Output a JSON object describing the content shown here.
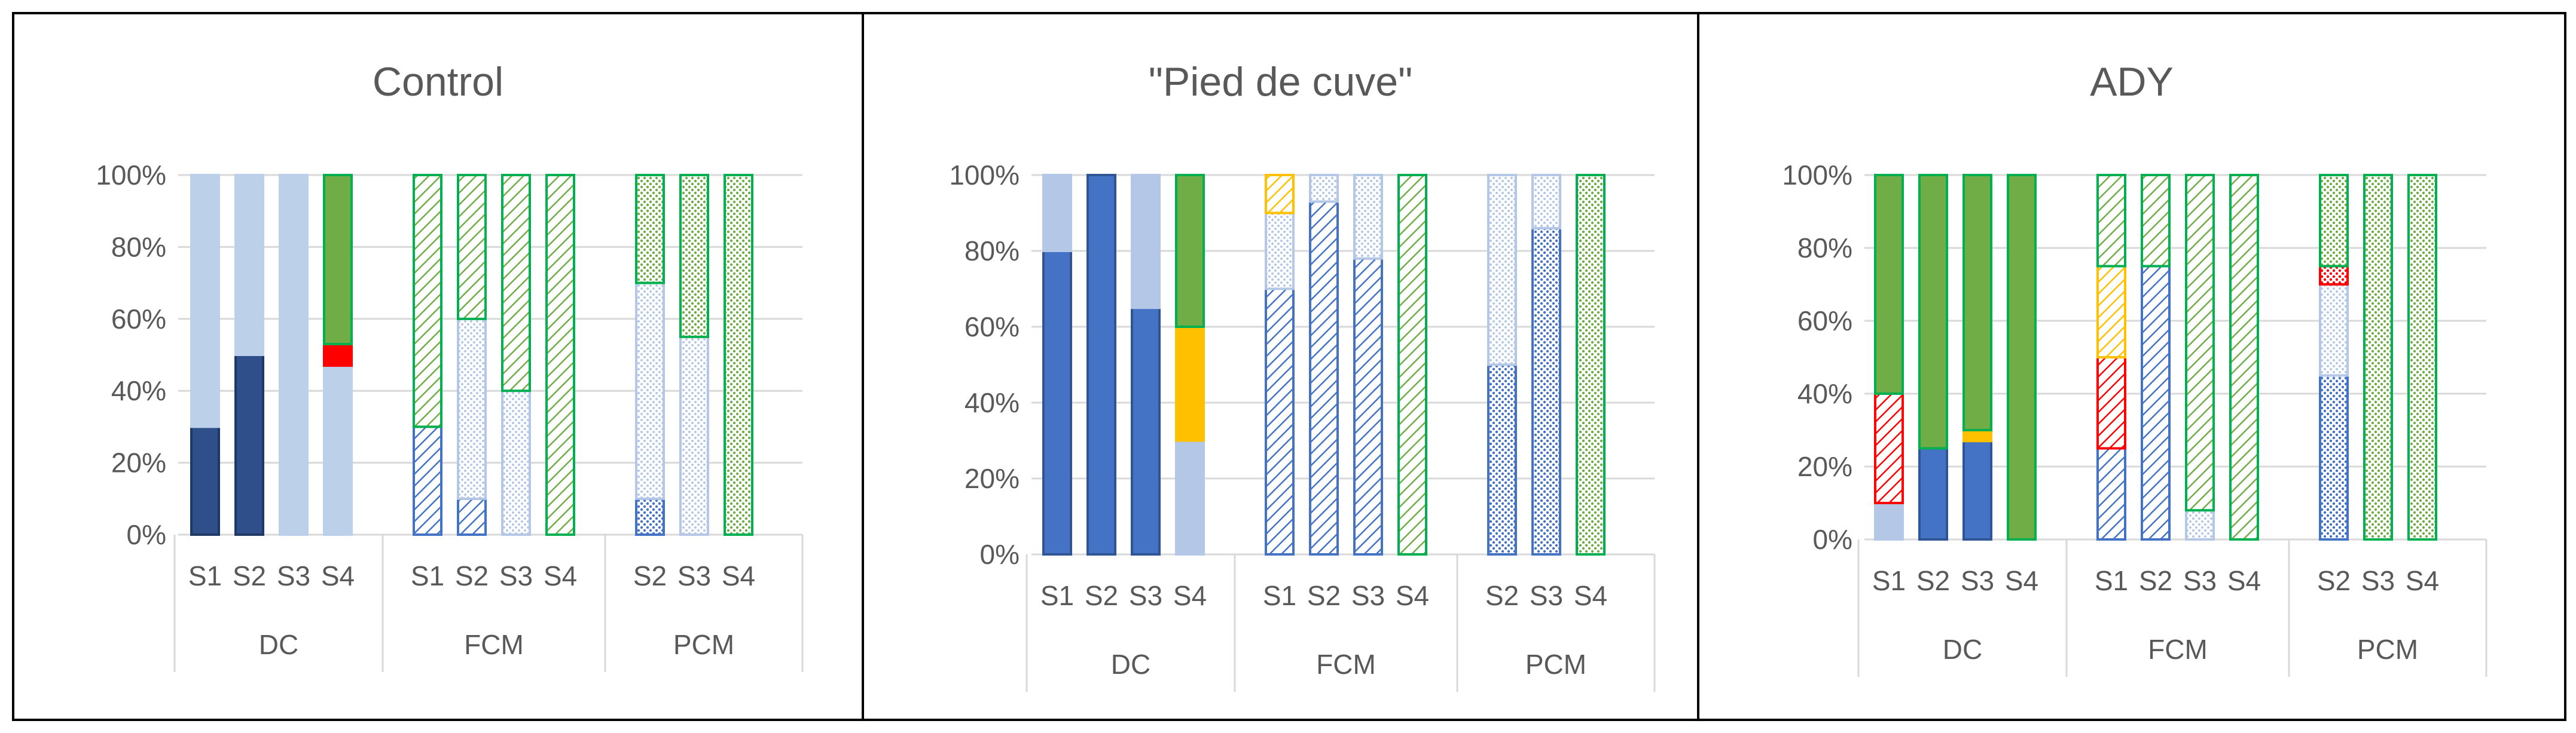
{
  "colors": {
    "dark_navy": "#2f4f8a",
    "blue": "#4472c4",
    "light_blue": "#bdd0ea",
    "pale_blue": "#b4c7e7",
    "green": "#70ad47",
    "red": "#ff0000",
    "yellow": "#ffc000",
    "axis": "#d9d9d9",
    "text": "#595959",
    "border": "#000000"
  },
  "chart_data": [
    {
      "type": "bar",
      "stacked": true,
      "title": "Control",
      "yticks": [
        "0%",
        "20%",
        "40%",
        "60%",
        "80%",
        "100%"
      ],
      "ylim": [
        0,
        100
      ],
      "groups": [
        {
          "label": "DC",
          "categories": [
            "S1",
            "S2",
            "S3",
            "S4"
          ]
        },
        {
          "label": "FCM",
          "categories": [
            "S1",
            "S2",
            "S3",
            "S4"
          ]
        },
        {
          "label": "PCM",
          "categories": [
            "S2",
            "S3",
            "S4"
          ]
        }
      ],
      "bars": [
        {
          "group": "DC",
          "category": "S1",
          "segments": [
            {
              "value": 30,
              "style": "dark_navy"
            },
            {
              "value": 70,
              "style": "light_blue"
            }
          ]
        },
        {
          "group": "DC",
          "category": "S2",
          "segments": [
            {
              "value": 50,
              "style": "dark_navy"
            },
            {
              "value": 50,
              "style": "light_blue"
            }
          ]
        },
        {
          "group": "DC",
          "category": "S3",
          "segments": [
            {
              "value": 100,
              "style": "light_blue"
            }
          ]
        },
        {
          "group": "DC",
          "category": "S4",
          "segments": [
            {
              "value": 47,
              "style": "light_blue"
            },
            {
              "value": 6,
              "style": "red"
            },
            {
              "value": 47,
              "style": "green"
            }
          ]
        },
        {
          "group": "FCM",
          "category": "S1",
          "segments": [
            {
              "value": 30,
              "style": "blue_hatch"
            },
            {
              "value": 70,
              "style": "green_hatch"
            }
          ]
        },
        {
          "group": "FCM",
          "category": "S2",
          "segments": [
            {
              "value": 10,
              "style": "blue_hatch"
            },
            {
              "value": 50,
              "style": "pale_blue_dots"
            },
            {
              "value": 40,
              "style": "green_hatch"
            }
          ]
        },
        {
          "group": "FCM",
          "category": "S3",
          "segments": [
            {
              "value": 40,
              "style": "pale_blue_dots"
            },
            {
              "value": 60,
              "style": "green_hatch"
            }
          ]
        },
        {
          "group": "FCM",
          "category": "S4",
          "segments": [
            {
              "value": 100,
              "style": "green_hatch"
            }
          ]
        },
        {
          "group": "PCM",
          "category": "S2",
          "segments": [
            {
              "value": 10,
              "style": "blue_dots"
            },
            {
              "value": 60,
              "style": "pale_blue_dots"
            },
            {
              "value": 30,
              "style": "green_dots"
            }
          ]
        },
        {
          "group": "PCM",
          "category": "S3",
          "segments": [
            {
              "value": 55,
              "style": "pale_blue_dots"
            },
            {
              "value": 45,
              "style": "green_dots"
            }
          ]
        },
        {
          "group": "PCM",
          "category": "S4",
          "segments": [
            {
              "value": 100,
              "style": "green_dots"
            }
          ]
        }
      ]
    },
    {
      "type": "bar",
      "stacked": true,
      "title": "\"Pied de cuve\"",
      "yticks": [
        "0%",
        "20%",
        "40%",
        "60%",
        "80%",
        "100%"
      ],
      "ylim": [
        0,
        100
      ],
      "groups": [
        {
          "label": "DC",
          "categories": [
            "S1",
            "S2",
            "S3",
            "S4"
          ]
        },
        {
          "label": "FCM",
          "categories": [
            "S1",
            "S2",
            "S3",
            "S4"
          ]
        },
        {
          "label": "PCM",
          "categories": [
            "S2",
            "S3",
            "S4"
          ]
        }
      ],
      "bars": [
        {
          "group": "DC",
          "category": "S1",
          "segments": [
            {
              "value": 80,
              "style": "blue"
            },
            {
              "value": 20,
              "style": "pale_blue"
            }
          ]
        },
        {
          "group": "DC",
          "category": "S2",
          "segments": [
            {
              "value": 100,
              "style": "blue"
            }
          ]
        },
        {
          "group": "DC",
          "category": "S3",
          "segments": [
            {
              "value": 65,
              "style": "blue"
            },
            {
              "value": 35,
              "style": "pale_blue"
            }
          ]
        },
        {
          "group": "DC",
          "category": "S4",
          "segments": [
            {
              "value": 30,
              "style": "pale_blue"
            },
            {
              "value": 30,
              "style": "yellow"
            },
            {
              "value": 40,
              "style": "green"
            }
          ]
        },
        {
          "group": "FCM",
          "category": "S1",
          "segments": [
            {
              "value": 70,
              "style": "blue_hatch"
            },
            {
              "value": 20,
              "style": "pale_blue_dots"
            },
            {
              "value": 10,
              "style": "yellow_hatch"
            }
          ]
        },
        {
          "group": "FCM",
          "category": "S2",
          "segments": [
            {
              "value": 93,
              "style": "blue_hatch"
            },
            {
              "value": 7,
              "style": "pale_blue_dots"
            }
          ]
        },
        {
          "group": "FCM",
          "category": "S3",
          "segments": [
            {
              "value": 78,
              "style": "blue_hatch"
            },
            {
              "value": 22,
              "style": "pale_blue_dots"
            }
          ]
        },
        {
          "group": "FCM",
          "category": "S4",
          "segments": [
            {
              "value": 100,
              "style": "green_hatch"
            }
          ]
        },
        {
          "group": "PCM",
          "category": "S2",
          "segments": [
            {
              "value": 50,
              "style": "blue_dots"
            },
            {
              "value": 50,
              "style": "pale_blue_dots"
            }
          ]
        },
        {
          "group": "PCM",
          "category": "S3",
          "segments": [
            {
              "value": 86,
              "style": "blue_dots"
            },
            {
              "value": 14,
              "style": "pale_blue_dots"
            }
          ]
        },
        {
          "group": "PCM",
          "category": "S4",
          "segments": [
            {
              "value": 100,
              "style": "green_dots"
            }
          ]
        }
      ]
    },
    {
      "type": "bar",
      "stacked": true,
      "title": "ADY",
      "yticks": [
        "0%",
        "20%",
        "40%",
        "60%",
        "80%",
        "100%"
      ],
      "ylim": [
        0,
        100
      ],
      "groups": [
        {
          "label": "DC",
          "categories": [
            "S1",
            "S2",
            "S3",
            "S4"
          ]
        },
        {
          "label": "FCM",
          "categories": [
            "S1",
            "S2",
            "S3",
            "S4"
          ]
        },
        {
          "label": "PCM",
          "categories": [
            "S2",
            "S3",
            "S4"
          ]
        }
      ],
      "bars": [
        {
          "group": "DC",
          "category": "S1",
          "segments": [
            {
              "value": 10,
              "style": "pale_blue"
            },
            {
              "value": 30,
              "style": "red_outline"
            },
            {
              "value": 60,
              "style": "green"
            }
          ]
        },
        {
          "group": "DC",
          "category": "S2",
          "segments": [
            {
              "value": 25,
              "style": "blue"
            },
            {
              "value": 75,
              "style": "green"
            }
          ]
        },
        {
          "group": "DC",
          "category": "S3",
          "segments": [
            {
              "value": 27,
              "style": "blue"
            },
            {
              "value": 3,
              "style": "yellow"
            },
            {
              "value": 70,
              "style": "green"
            }
          ]
        },
        {
          "group": "DC",
          "category": "S4",
          "segments": [
            {
              "value": 100,
              "style": "green"
            }
          ]
        },
        {
          "group": "FCM",
          "category": "S1",
          "segments": [
            {
              "value": 25,
              "style": "blue_hatch"
            },
            {
              "value": 25,
              "style": "red_hatch"
            },
            {
              "value": 25,
              "style": "yellow_hatch"
            },
            {
              "value": 25,
              "style": "green_hatch"
            }
          ]
        },
        {
          "group": "FCM",
          "category": "S2",
          "segments": [
            {
              "value": 75,
              "style": "blue_hatch"
            },
            {
              "value": 25,
              "style": "green_hatch"
            }
          ]
        },
        {
          "group": "FCM",
          "category": "S3",
          "segments": [
            {
              "value": 8,
              "style": "pale_blue_dots"
            },
            {
              "value": 92,
              "style": "green_hatch"
            }
          ]
        },
        {
          "group": "FCM",
          "category": "S4",
          "segments": [
            {
              "value": 100,
              "style": "green_hatch"
            }
          ]
        },
        {
          "group": "PCM",
          "category": "S2",
          "segments": [
            {
              "value": 45,
              "style": "blue_dots"
            },
            {
              "value": 25,
              "style": "pale_blue_dots"
            },
            {
              "value": 5,
              "style": "red_dots"
            },
            {
              "value": 25,
              "style": "green_dots"
            }
          ]
        },
        {
          "group": "PCM",
          "category": "S3",
          "segments": [
            {
              "value": 100,
              "style": "green_dots"
            }
          ]
        },
        {
          "group": "PCM",
          "category": "S4",
          "segments": [
            {
              "value": 100,
              "style": "green_dots"
            }
          ]
        }
      ]
    }
  ]
}
